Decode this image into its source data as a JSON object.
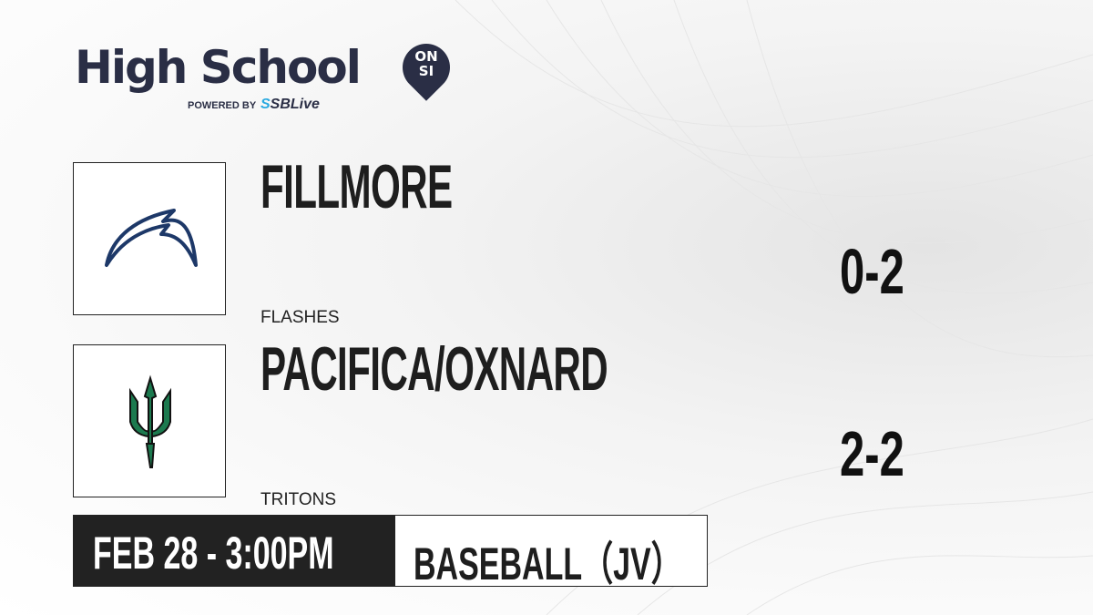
{
  "brand": {
    "title": "High School",
    "badge_top": "ON",
    "badge_bottom": "SI",
    "powered_by": "POWERED BY",
    "partner_prefix": "S",
    "partner": "SBLive"
  },
  "teams": [
    {
      "name": "FILLMORE",
      "mascot": "FLASHES",
      "record": "0-2",
      "logo_icon": "lightning-bolt-icon",
      "logo_color": "#1d3868"
    },
    {
      "name": "PACIFICA/OXNARD",
      "mascot": "TRITONS",
      "record": "2-2",
      "logo_icon": "trident-icon",
      "logo_color": "#1c7a4f"
    }
  ],
  "game": {
    "datetime": "FEB 28 - 3:00PM",
    "sport": "BASEBALL（JV）"
  }
}
